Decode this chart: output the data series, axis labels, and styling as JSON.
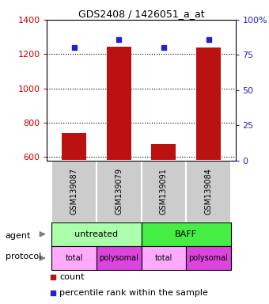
{
  "title": "GDS2408 / 1426051_a_at",
  "samples": [
    "GSM139087",
    "GSM139079",
    "GSM139091",
    "GSM139084"
  ],
  "counts": [
    740,
    1245,
    675,
    1240
  ],
  "percentile_ranks": [
    80,
    86,
    80,
    86
  ],
  "ylim_left": [
    580,
    1400
  ],
  "ylim_right": [
    0,
    100
  ],
  "yticks_left": [
    600,
    800,
    1000,
    1200,
    1400
  ],
  "yticks_right": [
    0,
    25,
    50,
    75,
    100
  ],
  "ytick_labels_right": [
    "0",
    "25",
    "50",
    "75",
    "100%"
  ],
  "bar_color": "#bb1111",
  "dot_color": "#2222cc",
  "agent_colors": [
    "#aaffaa",
    "#44ee44"
  ],
  "protocol_colors_light": "#ffaaff",
  "protocol_colors_dark": "#dd44dd",
  "legend_count_color": "#bb1111",
  "legend_pct_color": "#2222cc",
  "left_label_color": "#cc0000",
  "right_label_color": "#2222cc",
  "background_color": "#ffffff",
  "bar_width": 0.55,
  "x_positions": [
    0,
    1,
    2,
    3
  ]
}
